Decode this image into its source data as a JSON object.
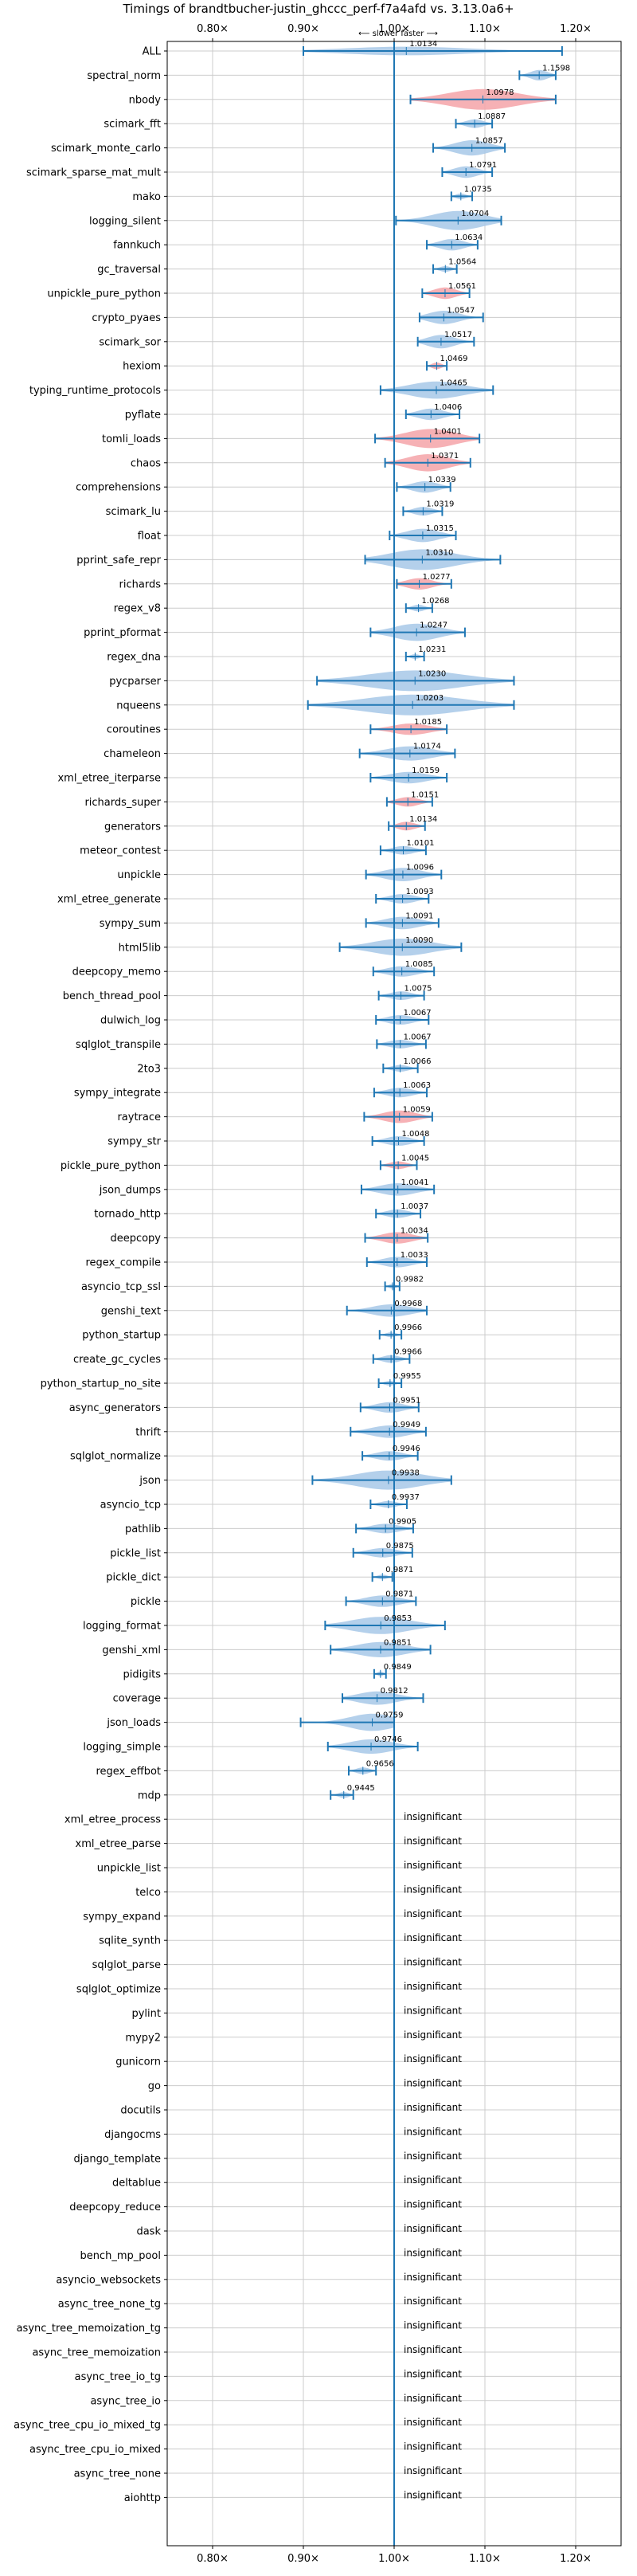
{
  "chart_data": {
    "type": "violin",
    "title": "Timings of brandtbucher-justin_ghccc_perf-f7a4afd vs. 3.13.0a6+",
    "annotation": "⟵ slower   faster ⟶",
    "xlim": [
      0.75,
      1.25
    ],
    "xticks": [
      0.8,
      0.9,
      1.0,
      1.1,
      1.2
    ],
    "xtick_labels": [
      "0.80×",
      "0.90×",
      "1.00×",
      "1.10×",
      "1.20×"
    ],
    "grid": true,
    "colors": {
      "faster_violin": "#a7c8e8",
      "slower_violin": "#f4a3a8",
      "errorbar": "#1f77b4",
      "reference_line": "#1f77b4",
      "grid": "#cccccc"
    },
    "insignificant_label": "insignificant",
    "benchmarks": [
      {
        "name": "ALL",
        "value": 1.0134,
        "low": 0.9,
        "high": 1.185,
        "color": "faster",
        "width": 0.018
      },
      {
        "name": "spectral_norm",
        "value": 1.1598,
        "low": 1.138,
        "high": 1.178,
        "color": "faster",
        "width": 0.022
      },
      {
        "name": "nbody",
        "value": 1.0978,
        "low": 1.018,
        "high": 1.178,
        "color": "slower",
        "width": 0.08
      },
      {
        "name": "scimark_fft",
        "value": 1.0887,
        "low": 1.068,
        "high": 1.108,
        "color": "faster",
        "width": 0.018
      },
      {
        "name": "scimark_monte_carlo",
        "value": 1.0857,
        "low": 1.043,
        "high": 1.122,
        "color": "faster",
        "width": 0.032
      },
      {
        "name": "scimark_sparse_mat_mult",
        "value": 1.0791,
        "low": 1.053,
        "high": 1.108,
        "color": "faster",
        "width": 0.024
      },
      {
        "name": "mako",
        "value": 1.0735,
        "low": 1.063,
        "high": 1.086,
        "color": "faster",
        "width": 0.012
      },
      {
        "name": "logging_silent",
        "value": 1.0704,
        "low": 1.002,
        "high": 1.118,
        "color": "faster",
        "width": 0.04
      },
      {
        "name": "fannkuch",
        "value": 1.0634,
        "low": 1.036,
        "high": 1.092,
        "color": "faster",
        "width": 0.024
      },
      {
        "name": "gc_traversal",
        "value": 1.0564,
        "low": 1.043,
        "high": 1.069,
        "color": "faster",
        "width": 0.012
      },
      {
        "name": "unpickle_pure_python",
        "value": 1.0561,
        "low": 1.031,
        "high": 1.083,
        "color": "slower",
        "width": 0.024
      },
      {
        "name": "crypto_pyaes",
        "value": 1.0547,
        "low": 1.028,
        "high": 1.098,
        "color": "faster",
        "width": 0.028
      },
      {
        "name": "scimark_sor",
        "value": 1.0517,
        "low": 1.026,
        "high": 1.088,
        "color": "faster",
        "width": 0.028
      },
      {
        "name": "hexiom",
        "value": 1.0469,
        "low": 1.036,
        "high": 1.058,
        "color": "slower",
        "width": 0.014
      },
      {
        "name": "typing_runtime_protocols",
        "value": 1.0465,
        "low": 0.985,
        "high": 1.109,
        "color": "faster",
        "width": 0.036
      },
      {
        "name": "pyflate",
        "value": 1.0406,
        "low": 1.013,
        "high": 1.072,
        "color": "faster",
        "width": 0.024
      },
      {
        "name": "tomli_loads",
        "value": 1.0401,
        "low": 0.979,
        "high": 1.094,
        "color": "slower",
        "width": 0.04
      },
      {
        "name": "chaos",
        "value": 1.0371,
        "low": 0.99,
        "high": 1.084,
        "color": "slower",
        "width": 0.036
      },
      {
        "name": "comprehensions",
        "value": 1.0339,
        "low": 1.003,
        "high": 1.062,
        "color": "faster",
        "width": 0.024
      },
      {
        "name": "scimark_lu",
        "value": 1.0319,
        "low": 1.01,
        "high": 1.053,
        "color": "faster",
        "width": 0.018
      },
      {
        "name": "float",
        "value": 1.0315,
        "low": 0.995,
        "high": 1.068,
        "color": "faster",
        "width": 0.028
      },
      {
        "name": "pprint_safe_repr",
        "value": 1.031,
        "low": 0.968,
        "high": 1.117,
        "color": "faster",
        "width": 0.044
      },
      {
        "name": "richards",
        "value": 1.0277,
        "low": 1.003,
        "high": 1.063,
        "color": "slower",
        "width": 0.024
      },
      {
        "name": "regex_v8",
        "value": 1.0268,
        "low": 1.013,
        "high": 1.042,
        "color": "faster",
        "width": 0.014
      },
      {
        "name": "pprint_pformat",
        "value": 1.0247,
        "low": 0.974,
        "high": 1.078,
        "color": "faster",
        "width": 0.036
      },
      {
        "name": "regex_dna",
        "value": 1.0231,
        "low": 1.013,
        "high": 1.033,
        "color": "faster",
        "width": 0.01
      },
      {
        "name": "pycparser",
        "value": 1.023,
        "low": 0.915,
        "high": 1.132,
        "color": "faster",
        "width": 0.05
      },
      {
        "name": "nqueens",
        "value": 1.0203,
        "low": 0.905,
        "high": 1.132,
        "color": "faster",
        "width": 0.05
      },
      {
        "name": "coroutines",
        "value": 1.0185,
        "low": 0.974,
        "high": 1.058,
        "color": "slower",
        "width": 0.024
      },
      {
        "name": "chameleon",
        "value": 1.0174,
        "low": 0.962,
        "high": 1.067,
        "color": "faster",
        "width": 0.03
      },
      {
        "name": "xml_etree_iterparse",
        "value": 1.0159,
        "low": 0.974,
        "high": 1.058,
        "color": "faster",
        "width": 0.024
      },
      {
        "name": "richards_super",
        "value": 1.0151,
        "low": 0.992,
        "high": 1.042,
        "color": "slower",
        "width": 0.02
      },
      {
        "name": "generators",
        "value": 1.0134,
        "low": 0.994,
        "high": 1.034,
        "color": "slower",
        "width": 0.018
      },
      {
        "name": "meteor_contest",
        "value": 1.0101,
        "low": 0.985,
        "high": 1.035,
        "color": "faster",
        "width": 0.018
      },
      {
        "name": "unpickle",
        "value": 1.0096,
        "low": 0.969,
        "high": 1.052,
        "color": "faster",
        "width": 0.028
      },
      {
        "name": "xml_etree_generate",
        "value": 1.0093,
        "low": 0.98,
        "high": 1.038,
        "color": "faster",
        "width": 0.02
      },
      {
        "name": "sympy_sum",
        "value": 1.0091,
        "low": 0.969,
        "high": 1.049,
        "color": "faster",
        "width": 0.026
      },
      {
        "name": "html5lib",
        "value": 1.009,
        "low": 0.94,
        "high": 1.074,
        "color": "faster",
        "width": 0.036
      },
      {
        "name": "deepcopy_memo",
        "value": 1.0085,
        "low": 0.977,
        "high": 1.044,
        "color": "faster",
        "width": 0.022
      },
      {
        "name": "bench_thread_pool",
        "value": 1.0075,
        "low": 0.983,
        "high": 1.033,
        "color": "faster",
        "width": 0.018
      },
      {
        "name": "dulwich_log",
        "value": 1.0067,
        "low": 0.98,
        "high": 1.038,
        "color": "faster",
        "width": 0.02
      },
      {
        "name": "sqlglot_transpile",
        "value": 1.0067,
        "low": 0.981,
        "high": 1.035,
        "color": "faster",
        "width": 0.018
      },
      {
        "name": "2to3",
        "value": 1.0066,
        "low": 0.988,
        "high": 1.026,
        "color": "faster",
        "width": 0.014
      },
      {
        "name": "sympy_integrate",
        "value": 1.0063,
        "low": 0.978,
        "high": 1.036,
        "color": "faster",
        "width": 0.02
      },
      {
        "name": "raytrace",
        "value": 1.0059,
        "low": 0.967,
        "high": 1.042,
        "color": "slower",
        "width": 0.026
      },
      {
        "name": "sympy_str",
        "value": 1.0048,
        "low": 0.976,
        "high": 1.033,
        "color": "faster",
        "width": 0.02
      },
      {
        "name": "pickle_pure_python",
        "value": 1.0045,
        "low": 0.985,
        "high": 1.025,
        "color": "slower",
        "width": 0.016
      },
      {
        "name": "json_dumps",
        "value": 1.0041,
        "low": 0.964,
        "high": 1.044,
        "color": "faster",
        "width": 0.026
      },
      {
        "name": "tornado_http",
        "value": 1.0037,
        "low": 0.98,
        "high": 1.029,
        "color": "faster",
        "width": 0.018
      },
      {
        "name": "deepcopy",
        "value": 1.0034,
        "low": 0.968,
        "high": 1.037,
        "color": "slower",
        "width": 0.024
      },
      {
        "name": "regex_compile",
        "value": 1.0033,
        "low": 0.97,
        "high": 1.036,
        "color": "faster",
        "width": 0.022
      },
      {
        "name": "asyncio_tcp_ssl",
        "value": 0.9982,
        "low": 0.99,
        "high": 1.006,
        "color": "faster",
        "width": 0.008
      },
      {
        "name": "genshi_text",
        "value": 0.9968,
        "low": 0.948,
        "high": 1.036,
        "color": "faster",
        "width": 0.026
      },
      {
        "name": "python_startup",
        "value": 0.9966,
        "low": 0.984,
        "high": 1.008,
        "color": "faster",
        "width": 0.01
      },
      {
        "name": "create_gc_cycles",
        "value": 0.9966,
        "low": 0.977,
        "high": 1.017,
        "color": "faster",
        "width": 0.016
      },
      {
        "name": "python_startup_no_site",
        "value": 0.9955,
        "low": 0.983,
        "high": 1.008,
        "color": "faster",
        "width": 0.01
      },
      {
        "name": "async_generators",
        "value": 0.9951,
        "low": 0.963,
        "high": 1.027,
        "color": "faster",
        "width": 0.022
      },
      {
        "name": "thrift",
        "value": 0.9949,
        "low": 0.952,
        "high": 1.035,
        "color": "faster",
        "width": 0.026
      },
      {
        "name": "sqlglot_normalize",
        "value": 0.9946,
        "low": 0.965,
        "high": 1.026,
        "color": "faster",
        "width": 0.02
      },
      {
        "name": "json",
        "value": 0.9938,
        "low": 0.91,
        "high": 1.063,
        "color": "faster",
        "width": 0.04
      },
      {
        "name": "asyncio_tcp",
        "value": 0.9937,
        "low": 0.974,
        "high": 1.014,
        "color": "faster",
        "width": 0.014
      },
      {
        "name": "pathlib",
        "value": 0.9905,
        "low": 0.958,
        "high": 1.021,
        "color": "faster",
        "width": 0.02
      },
      {
        "name": "pickle_list",
        "value": 0.9875,
        "low": 0.955,
        "high": 1.02,
        "color": "faster",
        "width": 0.02
      },
      {
        "name": "pickle_dict",
        "value": 0.9871,
        "low": 0.976,
        "high": 0.998,
        "color": "faster",
        "width": 0.01
      },
      {
        "name": "pickle",
        "value": 0.9871,
        "low": 0.947,
        "high": 1.024,
        "color": "faster",
        "width": 0.024
      },
      {
        "name": "logging_format",
        "value": 0.9853,
        "low": 0.924,
        "high": 1.056,
        "color": "faster",
        "width": 0.036
      },
      {
        "name": "genshi_xml",
        "value": 0.9851,
        "low": 0.93,
        "high": 1.04,
        "color": "faster",
        "width": 0.032
      },
      {
        "name": "pidigits",
        "value": 0.9849,
        "low": 0.978,
        "high": 0.991,
        "color": "faster",
        "width": 0.006
      },
      {
        "name": "coverage",
        "value": 0.9812,
        "low": 0.943,
        "high": 1.032,
        "color": "faster",
        "width": 0.028
      },
      {
        "name": "json_loads",
        "value": 0.9759,
        "low": 0.897,
        "high": 1.0,
        "color": "faster",
        "width": 0.036
      },
      {
        "name": "logging_simple",
        "value": 0.9746,
        "low": 0.927,
        "high": 1.026,
        "color": "faster",
        "width": 0.03
      },
      {
        "name": "regex_effbot",
        "value": 0.9656,
        "low": 0.95,
        "high": 0.98,
        "color": "faster",
        "width": 0.014
      },
      {
        "name": "mdp",
        "value": 0.9445,
        "low": 0.93,
        "high": 0.955,
        "color": "faster",
        "width": 0.012
      },
      {
        "name": "xml_etree_process",
        "insignificant": true
      },
      {
        "name": "xml_etree_parse",
        "insignificant": true
      },
      {
        "name": "unpickle_list",
        "insignificant": true
      },
      {
        "name": "telco",
        "insignificant": true
      },
      {
        "name": "sympy_expand",
        "insignificant": true
      },
      {
        "name": "sqlite_synth",
        "insignificant": true
      },
      {
        "name": "sqlglot_parse",
        "insignificant": true
      },
      {
        "name": "sqlglot_optimize",
        "insignificant": true
      },
      {
        "name": "pylint",
        "insignificant": true
      },
      {
        "name": "mypy2",
        "insignificant": true
      },
      {
        "name": "gunicorn",
        "insignificant": true
      },
      {
        "name": "go",
        "insignificant": true
      },
      {
        "name": "docutils",
        "insignificant": true
      },
      {
        "name": "djangocms",
        "insignificant": true
      },
      {
        "name": "django_template",
        "insignificant": true
      },
      {
        "name": "deltablue",
        "insignificant": true
      },
      {
        "name": "deepcopy_reduce",
        "insignificant": true
      },
      {
        "name": "dask",
        "insignificant": true
      },
      {
        "name": "bench_mp_pool",
        "insignificant": true
      },
      {
        "name": "asyncio_websockets",
        "insignificant": true
      },
      {
        "name": "async_tree_none_tg",
        "insignificant": true
      },
      {
        "name": "async_tree_memoization_tg",
        "insignificant": true
      },
      {
        "name": "async_tree_memoization",
        "insignificant": true
      },
      {
        "name": "async_tree_io_tg",
        "insignificant": true
      },
      {
        "name": "async_tree_io",
        "insignificant": true
      },
      {
        "name": "async_tree_cpu_io_mixed_tg",
        "insignificant": true
      },
      {
        "name": "async_tree_cpu_io_mixed",
        "insignificant": true
      },
      {
        "name": "async_tree_none",
        "insignificant": true
      },
      {
        "name": "aiohttp",
        "insignificant": true
      }
    ]
  }
}
